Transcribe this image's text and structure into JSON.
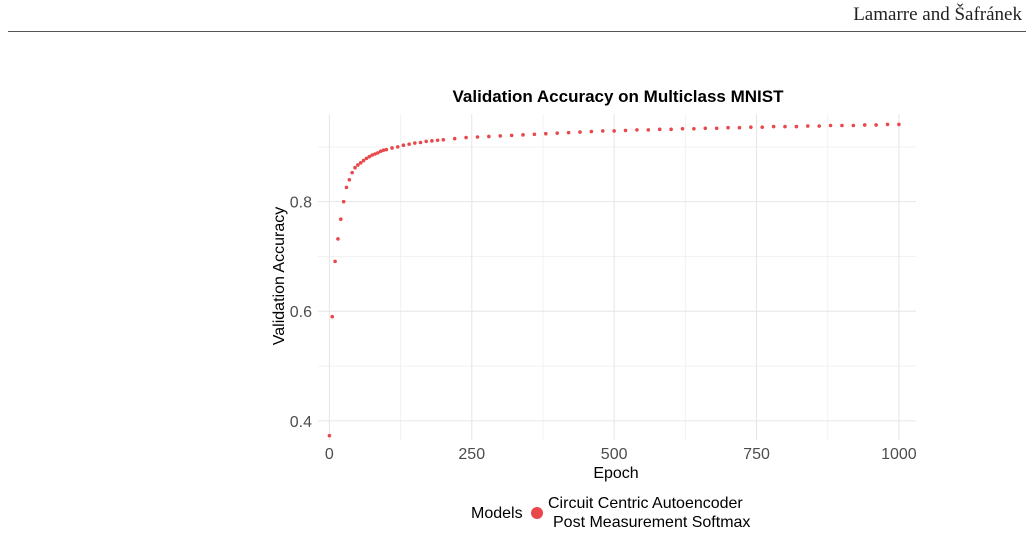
{
  "header": {
    "running_head": "Lamarre and Šafránek"
  },
  "chart_data": {
    "type": "scatter",
    "title": "Validation Accuracy on Multiclass MNIST",
    "xlabel": "Epoch",
    "ylabel": "Validation Accuracy",
    "xlim": [
      -20,
      1030
    ],
    "ylim": [
      0.365,
      0.96
    ],
    "xticks": [
      0,
      250,
      500,
      750,
      1000
    ],
    "yticks": [
      0.4,
      0.6,
      0.8
    ],
    "grid": true,
    "legend": {
      "title": "Models",
      "position": "bottom",
      "entries": [
        {
          "label_line1": "Circuit Centric Autoencoder",
          "label_line2": "Post Measurement Softmax",
          "color": "#e8474b"
        }
      ]
    },
    "series": [
      {
        "color": "#e8474b",
        "points": [
          [
            0,
            0.373
          ],
          [
            5,
            0.59
          ],
          [
            10,
            0.691
          ],
          [
            15,
            0.732
          ],
          [
            20,
            0.768
          ],
          [
            25,
            0.8
          ],
          [
            30,
            0.826
          ],
          [
            35,
            0.84
          ],
          [
            40,
            0.853
          ],
          [
            45,
            0.862
          ],
          [
            50,
            0.867
          ],
          [
            55,
            0.871
          ],
          [
            60,
            0.875
          ],
          [
            65,
            0.879
          ],
          [
            70,
            0.882
          ],
          [
            75,
            0.885
          ],
          [
            80,
            0.887
          ],
          [
            85,
            0.889
          ],
          [
            90,
            0.892
          ],
          [
            95,
            0.894
          ],
          [
            100,
            0.895
          ],
          [
            110,
            0.898
          ],
          [
            120,
            0.9
          ],
          [
            130,
            0.903
          ],
          [
            140,
            0.905
          ],
          [
            150,
            0.907
          ],
          [
            160,
            0.908
          ],
          [
            170,
            0.91
          ],
          [
            180,
            0.911
          ],
          [
            190,
            0.912
          ],
          [
            200,
            0.913
          ],
          [
            220,
            0.915
          ],
          [
            240,
            0.917
          ],
          [
            260,
            0.918
          ],
          [
            280,
            0.919
          ],
          [
            300,
            0.92
          ],
          [
            320,
            0.921
          ],
          [
            340,
            0.922
          ],
          [
            360,
            0.923
          ],
          [
            380,
            0.924
          ],
          [
            400,
            0.925
          ],
          [
            420,
            0.926
          ],
          [
            440,
            0.927
          ],
          [
            460,
            0.928
          ],
          [
            480,
            0.929
          ],
          [
            500,
            0.929
          ],
          [
            520,
            0.93
          ],
          [
            540,
            0.931
          ],
          [
            560,
            0.931
          ],
          [
            580,
            0.932
          ],
          [
            600,
            0.932
          ],
          [
            620,
            0.933
          ],
          [
            640,
            0.933
          ],
          [
            660,
            0.934
          ],
          [
            680,
            0.934
          ],
          [
            700,
            0.935
          ],
          [
            720,
            0.935
          ],
          [
            740,
            0.936
          ],
          [
            760,
            0.936
          ],
          [
            780,
            0.937
          ],
          [
            800,
            0.937
          ],
          [
            820,
            0.937
          ],
          [
            840,
            0.938
          ],
          [
            860,
            0.938
          ],
          [
            880,
            0.939
          ],
          [
            900,
            0.939
          ],
          [
            920,
            0.939
          ],
          [
            940,
            0.94
          ],
          [
            960,
            0.94
          ],
          [
            980,
            0.941
          ],
          [
            1000,
            0.941
          ]
        ]
      }
    ]
  }
}
